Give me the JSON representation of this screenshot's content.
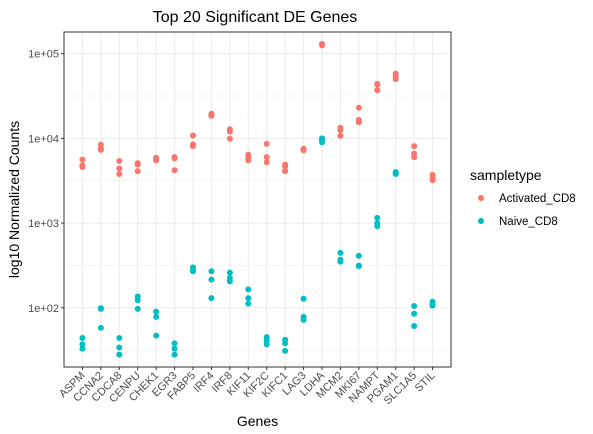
{
  "chart_data": {
    "type": "scatter",
    "title": "Top 20 Significant DE Genes",
    "xlabel": "Genes",
    "ylabel": "log10 Normalized Counts",
    "y_scale": "log10",
    "ylim": [
      20,
      180000
    ],
    "y_ticks": [
      100,
      1000,
      10000,
      100000
    ],
    "y_tick_labels": [
      "1e+02",
      "1e+03",
      "1e+04",
      "1e+05"
    ],
    "grid": true,
    "legend_title": "sampletype",
    "legend_position": "right",
    "categories": [
      "ASPM",
      "CCNA2",
      "CDCA8",
      "CENPU",
      "CHEK1",
      "EGR3",
      "FABP5",
      "IRF4",
      "IRF8",
      "KIF11",
      "KIF2C",
      "KIFC1",
      "LAG3",
      "LDHA",
      "MCM2",
      "MKI67",
      "NAMPT",
      "PGAM1",
      "SLC1A5",
      "STIL"
    ],
    "series": [
      {
        "name": "Activated_CD8",
        "color": "#F8766D",
        "values": [
          [
            5600,
            4800,
            4600
          ],
          [
            8400,
            7600,
            7300
          ],
          [
            5400,
            4400,
            3800
          ],
          [
            5100,
            4900,
            4100
          ],
          [
            5900,
            5600,
            5500
          ],
          [
            6000,
            5800,
            4200
          ],
          [
            10800,
            8500,
            8100
          ],
          [
            19500,
            18800,
            18500
          ],
          [
            12800,
            12000,
            9900
          ],
          [
            6400,
            5900,
            5500
          ],
          [
            8600,
            6000,
            5200
          ],
          [
            4900,
            4600,
            4100
          ],
          [
            7500,
            7300,
            7200
          ],
          [
            130000,
            127000,
            125000
          ],
          [
            13300,
            12500,
            10700
          ],
          [
            23000,
            16500,
            15500
          ],
          [
            44000,
            43000,
            37000
          ],
          [
            58000,
            54000,
            50000
          ],
          [
            8100,
            6600,
            6000
          ],
          [
            3700,
            3400,
            3200
          ]
        ]
      },
      {
        "name": "Naive_CD8",
        "color": "#00BFC4",
        "values": [
          [
            44,
            37,
            33
          ],
          [
            99,
            97,
            58
          ],
          [
            44,
            34,
            28
          ],
          [
            136,
            123,
            97
          ],
          [
            90,
            78,
            47
          ],
          [
            38,
            33,
            28
          ],
          [
            300,
            280,
            270
          ],
          [
            270,
            215,
            130
          ],
          [
            260,
            225,
            205
          ],
          [
            165,
            130,
            112
          ],
          [
            45,
            41,
            37
          ],
          [
            42,
            38,
            31
          ],
          [
            128,
            78,
            72
          ],
          [
            10000,
            9500,
            9000
          ],
          [
            445,
            370,
            350
          ],
          [
            410,
            315,
            310
          ],
          [
            1150,
            1000,
            920
          ],
          [
            4000,
            3900,
            3800
          ],
          [
            105,
            85,
            61
          ],
          [
            118,
            110,
            106
          ]
        ]
      }
    ]
  }
}
